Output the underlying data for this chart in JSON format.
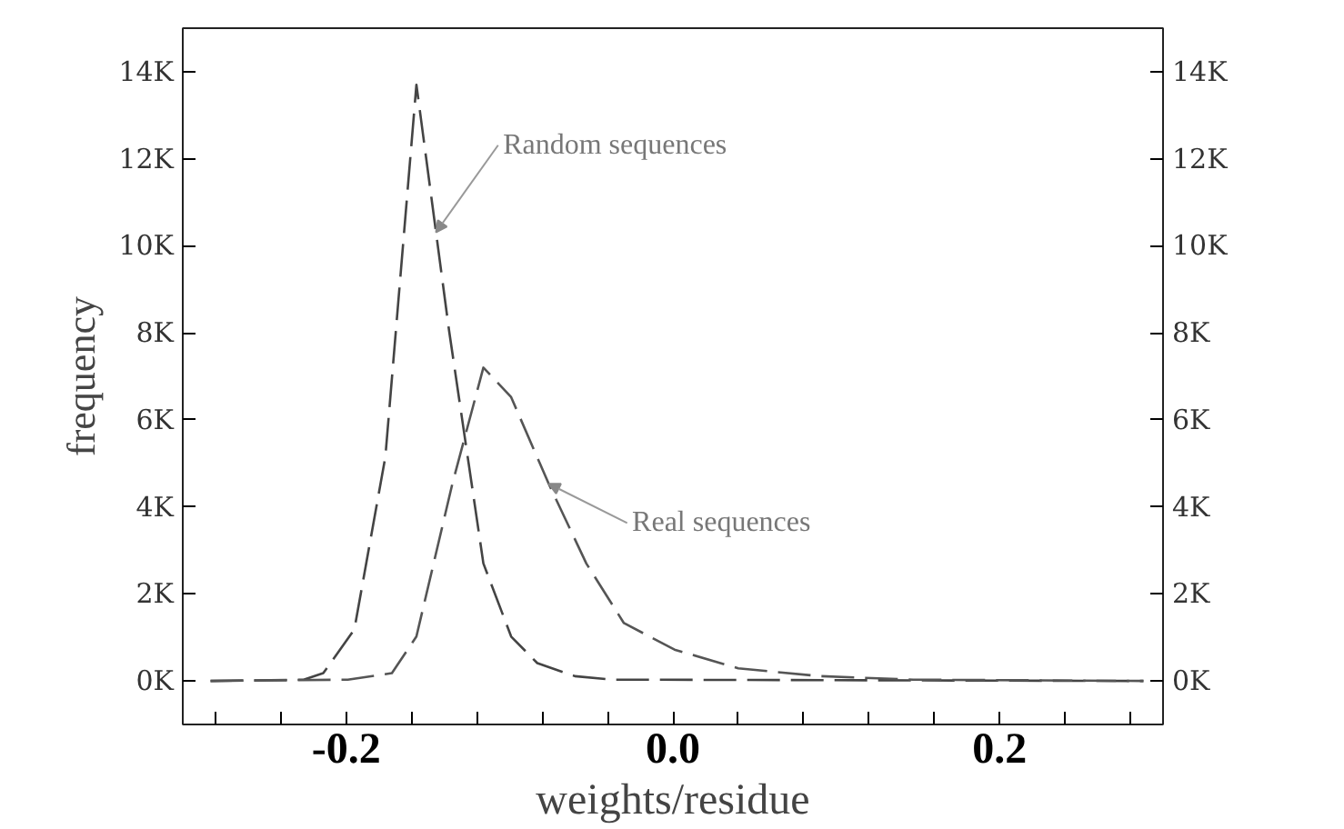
{
  "chart_data": {
    "type": "line",
    "xlabel": "weights/residue",
    "ylabel": "frequency",
    "xlim": [
      -0.3,
      0.3
    ],
    "ylim": [
      -1000,
      15000
    ],
    "y2lim": [
      -1000,
      15000
    ],
    "xticks": [
      {
        "value": -0.28,
        "label": null
      },
      {
        "value": -0.24,
        "label": null
      },
      {
        "value": -0.2,
        "label": "-0.2"
      },
      {
        "value": -0.16,
        "label": null
      },
      {
        "value": -0.12,
        "label": null
      },
      {
        "value": -0.08,
        "label": null
      },
      {
        "value": -0.04,
        "label": null
      },
      {
        "value": 0.0,
        "label": "0.0"
      },
      {
        "value": 0.04,
        "label": null
      },
      {
        "value": 0.08,
        "label": null
      },
      {
        "value": 0.12,
        "label": null
      },
      {
        "value": 0.16,
        "label": null
      },
      {
        "value": 0.2,
        "label": "0.2"
      },
      {
        "value": 0.24,
        "label": null
      },
      {
        "value": 0.28,
        "label": null
      }
    ],
    "yticks": [
      {
        "value": 0,
        "label": "0K"
      },
      {
        "value": 2000,
        "label": "2K"
      },
      {
        "value": 4000,
        "label": "4K"
      },
      {
        "value": 6000,
        "label": "6K"
      },
      {
        "value": 8000,
        "label": "8K"
      },
      {
        "value": 10000,
        "label": "10K"
      },
      {
        "value": 12000,
        "label": "12K"
      },
      {
        "value": 14000,
        "label": "14K"
      }
    ],
    "y2ticks": [
      {
        "value": 0,
        "label": "0K"
      },
      {
        "value": 2000,
        "label": "2K"
      },
      {
        "value": 4000,
        "label": "4K"
      },
      {
        "value": 6000,
        "label": "6K"
      },
      {
        "value": 8000,
        "label": "8K"
      },
      {
        "value": 10000,
        "label": "10K"
      },
      {
        "value": 12000,
        "label": "12K"
      },
      {
        "value": 14000,
        "label": "14K"
      }
    ],
    "grid": false,
    "line_style": "dashed",
    "marker": "none",
    "series": [
      {
        "color": "#444444",
        "x": [
          -0.283,
          -0.226,
          -0.214,
          -0.195,
          -0.176,
          -0.157,
          -0.137,
          -0.116,
          -0.099,
          -0.083,
          -0.06,
          -0.037,
          0.288
        ],
        "values": [
          0,
          30,
          180,
          1180,
          5150,
          13700,
          8050,
          2700,
          1020,
          410,
          110,
          30,
          0
        ]
      },
      {
        "color": "#555555",
        "x": [
          -0.283,
          -0.199,
          -0.172,
          -0.157,
          -0.135,
          -0.116,
          -0.099,
          -0.076,
          -0.053,
          -0.03,
          0.001,
          0.04,
          0.09,
          0.147,
          0.288
        ],
        "values": [
          0,
          30,
          180,
          1020,
          4530,
          7200,
          6520,
          4530,
          2700,
          1330,
          720,
          290,
          110,
          30,
          0
        ]
      }
    ],
    "annotations": [
      {
        "text": "Random sequences",
        "x": -0.145,
        "y": 10310
      },
      {
        "text": "Real sequences",
        "x": -0.076,
        "y": 4530
      }
    ]
  }
}
